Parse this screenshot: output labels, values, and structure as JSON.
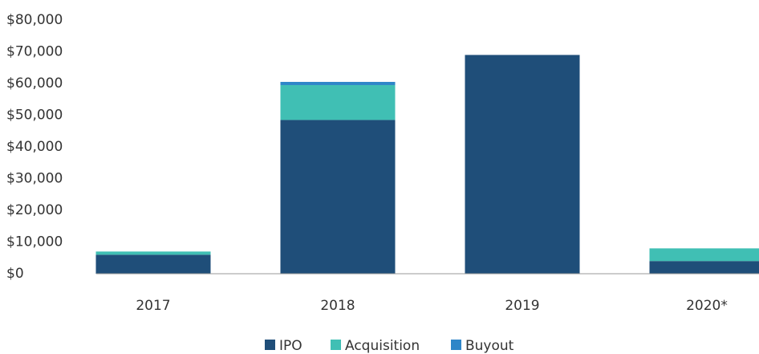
{
  "chart_data": {
    "type": "stacked_bar",
    "categories": [
      "2017",
      "2018",
      "2019",
      "2020*"
    ],
    "series": [
      {
        "name": "IPO",
        "color": "#1f4e79",
        "values": [
          6000,
          48500,
          69000,
          4000
        ]
      },
      {
        "name": "Acquisition",
        "color": "#40bfb4",
        "values": [
          1000,
          11000,
          0,
          4000
        ]
      },
      {
        "name": "Buyout",
        "color": "#2e86c8",
        "values": [
          0,
          1000,
          0,
          0
        ]
      }
    ],
    "ylim": [
      0,
      80000
    ],
    "yticks": [
      {
        "value": 0,
        "label": "$0"
      },
      {
        "value": 10000,
        "label": "$10,000"
      },
      {
        "value": 20000,
        "label": "$20,000"
      },
      {
        "value": 30000,
        "label": "$30,000"
      },
      {
        "value": 40000,
        "label": "$40,000"
      },
      {
        "value": 50000,
        "label": "$50,000"
      },
      {
        "value": 60000,
        "label": "$60,000"
      },
      {
        "value": 70000,
        "label": "$70,000"
      },
      {
        "value": 80000,
        "label": "$80,000"
      }
    ],
    "grid": false,
    "legend": "bottom"
  }
}
